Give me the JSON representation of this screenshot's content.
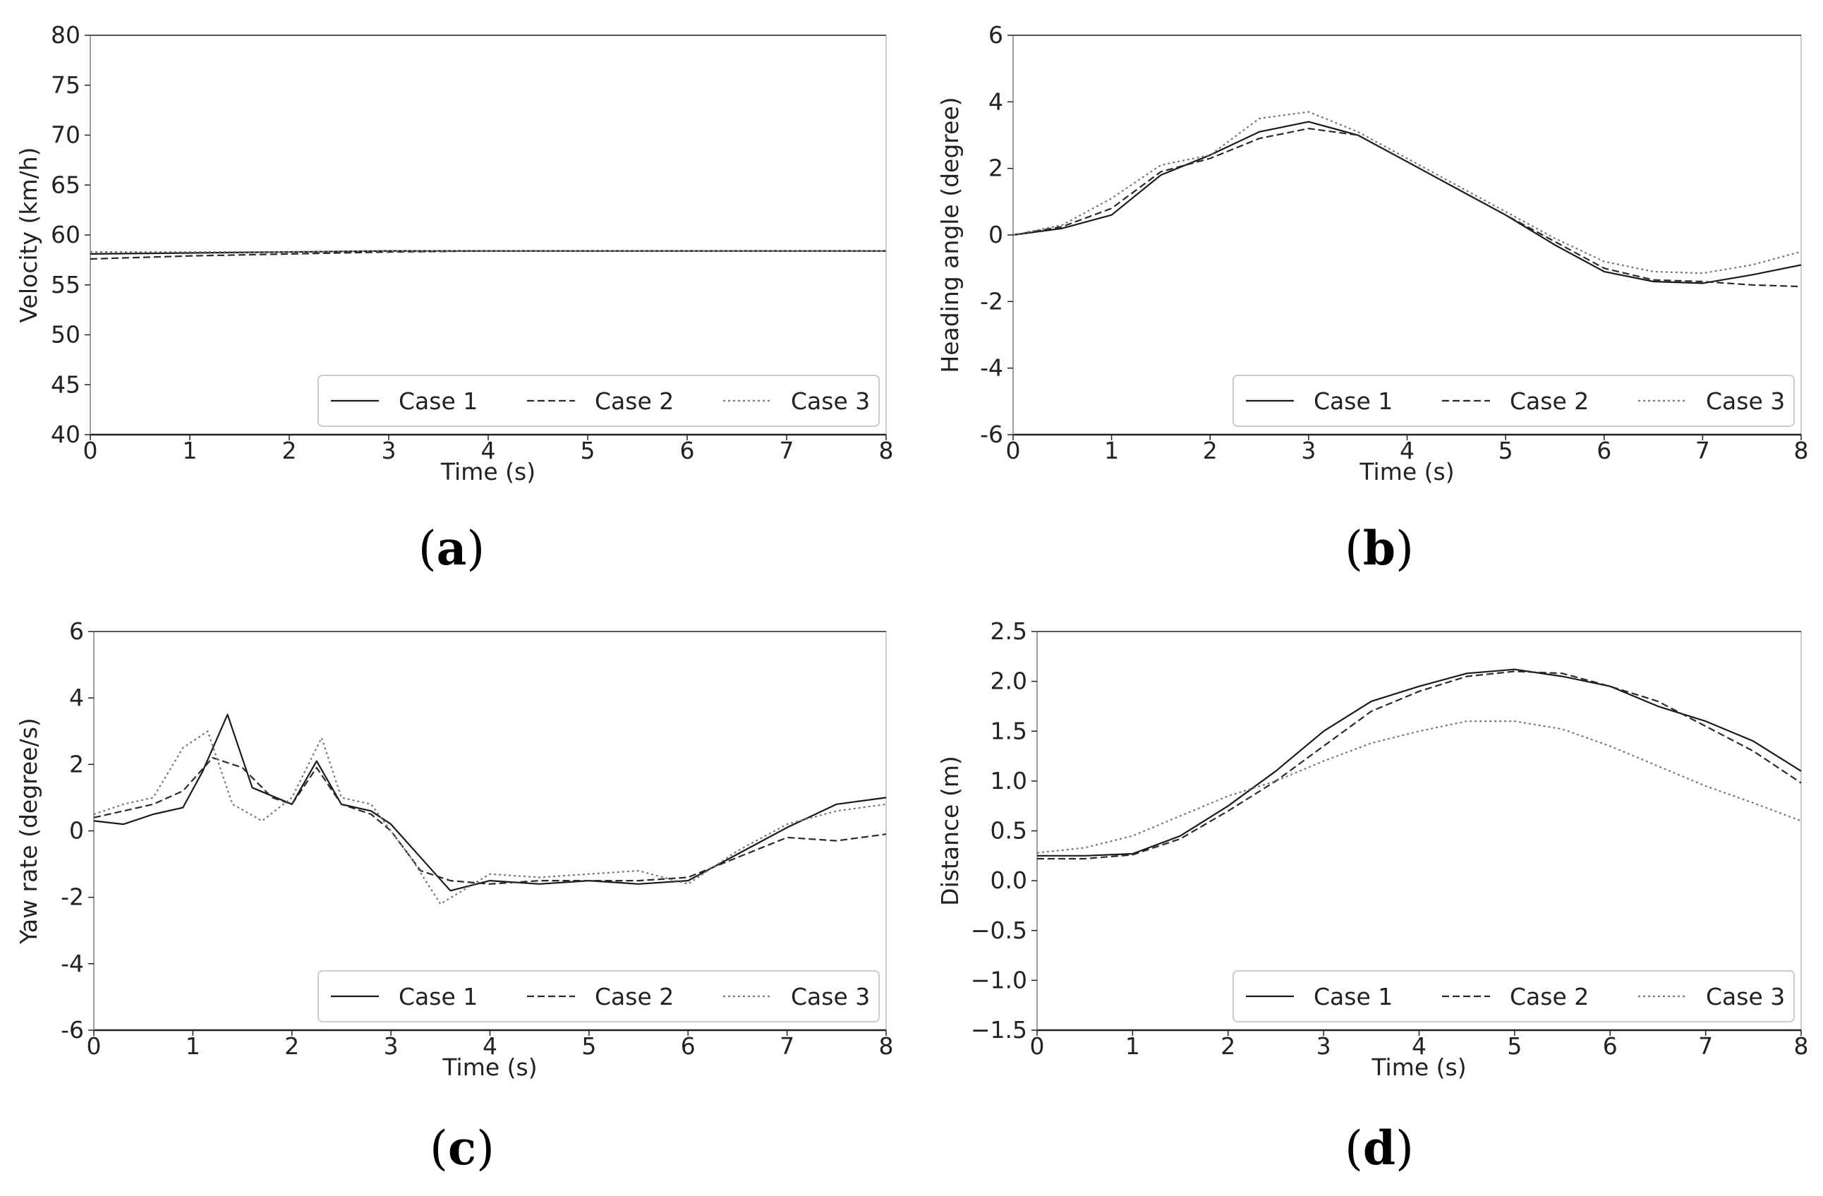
{
  "chart_data": [
    {
      "type": "line",
      "panel": "(a)",
      "panel_letter": "a",
      "xlabel": "Time (s)",
      "ylabel": "Velocity (km/h)",
      "xlim": [
        0,
        8
      ],
      "ylim": [
        40,
        80
      ],
      "xticks": [
        0,
        1,
        2,
        3,
        4,
        5,
        6,
        7,
        8
      ],
      "yticks": [
        40,
        45,
        50,
        55,
        60,
        65,
        70,
        75,
        80
      ],
      "legend": "lower-right",
      "series": [
        {
          "name": "Case 1",
          "style": "solid",
          "x": [
            0,
            1,
            2,
            3,
            4,
            5,
            6,
            7,
            8
          ],
          "y": [
            58.1,
            58.2,
            58.3,
            58.4,
            58.4,
            58.4,
            58.4,
            58.4,
            58.4
          ]
        },
        {
          "name": "Case 2",
          "style": "dashed",
          "x": [
            0,
            1,
            2,
            3,
            4,
            5,
            6,
            7,
            8
          ],
          "y": [
            57.6,
            57.9,
            58.1,
            58.3,
            58.4,
            58.4,
            58.4,
            58.4,
            58.4
          ]
        },
        {
          "name": "Case 3",
          "style": "dotted",
          "x": [
            0,
            1,
            2,
            3,
            4,
            5,
            6,
            7,
            8
          ],
          "y": [
            58.3,
            58.3,
            58.3,
            58.4,
            58.4,
            58.4,
            58.4,
            58.4,
            58.4
          ]
        }
      ]
    },
    {
      "type": "line",
      "panel": "(b)",
      "panel_letter": "b",
      "xlabel": "Time (s)",
      "ylabel": "Heading angle (degree)",
      "xlim": [
        0,
        8
      ],
      "ylim": [
        -6,
        6
      ],
      "xticks": [
        0,
        1,
        2,
        3,
        4,
        5,
        6,
        7,
        8
      ],
      "yticks": [
        -6,
        -4,
        -2,
        0,
        2,
        4,
        6
      ],
      "legend": "lower-right",
      "series": [
        {
          "name": "Case 1",
          "style": "solid",
          "x": [
            0,
            0.5,
            1,
            1.5,
            2,
            2.5,
            3,
            3.5,
            4,
            4.5,
            5,
            5.5,
            6,
            6.5,
            7,
            7.5,
            8
          ],
          "y": [
            0,
            0.2,
            0.6,
            1.8,
            2.4,
            3.1,
            3.4,
            3.0,
            2.2,
            1.4,
            0.6,
            -0.3,
            -1.1,
            -1.4,
            -1.45,
            -1.2,
            -0.9
          ]
        },
        {
          "name": "Case 2",
          "style": "dashed",
          "x": [
            0,
            0.5,
            1,
            1.5,
            2,
            2.5,
            3,
            3.5,
            4,
            4.5,
            5,
            5.5,
            6,
            6.5,
            7,
            7.5,
            8
          ],
          "y": [
            0,
            0.25,
            0.8,
            1.9,
            2.3,
            2.9,
            3.2,
            3.0,
            2.2,
            1.4,
            0.6,
            -0.2,
            -1.0,
            -1.35,
            -1.4,
            -1.5,
            -1.55
          ]
        },
        {
          "name": "Case 3",
          "style": "dotted",
          "x": [
            0,
            0.5,
            1,
            1.5,
            2,
            2.5,
            3,
            3.5,
            4,
            4.5,
            5,
            5.5,
            6,
            6.5,
            7,
            7.5,
            8
          ],
          "y": [
            0,
            0.3,
            1.1,
            2.1,
            2.4,
            3.5,
            3.7,
            3.1,
            2.3,
            1.5,
            0.7,
            -0.1,
            -0.8,
            -1.1,
            -1.15,
            -0.9,
            -0.5
          ]
        }
      ]
    },
    {
      "type": "line",
      "panel": "(c)",
      "panel_letter": "c",
      "xlabel": "Time (s)",
      "ylabel": "Yaw rate (degree/s)",
      "xlim": [
        0,
        8
      ],
      "ylim": [
        -6,
        6
      ],
      "xticks": [
        0,
        1,
        2,
        3,
        4,
        5,
        6,
        7,
        8
      ],
      "yticks": [
        -6,
        -4,
        -2,
        0,
        2,
        4,
        6
      ],
      "legend": "lower-right",
      "series": [
        {
          "name": "Case 1",
          "style": "solid",
          "x": [
            0,
            0.3,
            0.6,
            0.9,
            1.1,
            1.35,
            1.6,
            2.0,
            2.25,
            2.5,
            2.8,
            3.0,
            3.3,
            3.6,
            4.0,
            4.5,
            5.0,
            5.5,
            6.0,
            6.5,
            7.0,
            7.5,
            8.0
          ],
          "y": [
            0.3,
            0.2,
            0.5,
            0.7,
            1.8,
            3.5,
            1.3,
            0.8,
            2.1,
            0.8,
            0.6,
            0.2,
            -0.8,
            -1.8,
            -1.5,
            -1.6,
            -1.5,
            -1.6,
            -1.5,
            -0.7,
            0.1,
            0.8,
            1.0
          ]
        },
        {
          "name": "Case 2",
          "style": "dashed",
          "x": [
            0,
            0.3,
            0.6,
            0.9,
            1.2,
            1.5,
            1.8,
            2.0,
            2.25,
            2.5,
            2.8,
            3.0,
            3.3,
            3.6,
            4.0,
            4.5,
            5.0,
            5.5,
            6.0,
            6.5,
            7.0,
            7.5,
            8.0
          ],
          "y": [
            0.4,
            0.6,
            0.8,
            1.2,
            2.2,
            1.9,
            1.0,
            0.8,
            1.9,
            0.8,
            0.5,
            0.0,
            -1.2,
            -1.5,
            -1.6,
            -1.5,
            -1.5,
            -1.5,
            -1.4,
            -0.8,
            -0.2,
            -0.3,
            -0.1
          ]
        },
        {
          "name": "Case 3",
          "style": "dotted",
          "x": [
            0,
            0.3,
            0.6,
            0.9,
            1.15,
            1.4,
            1.7,
            2.0,
            2.3,
            2.5,
            2.8,
            3.0,
            3.2,
            3.5,
            4.0,
            4.5,
            5.0,
            5.5,
            6.0,
            6.5,
            7.0,
            7.5,
            8.0
          ],
          "y": [
            0.5,
            0.8,
            1.0,
            2.5,
            3.0,
            0.8,
            0.3,
            1.0,
            2.8,
            1.0,
            0.8,
            0.0,
            -0.8,
            -2.2,
            -1.3,
            -1.4,
            -1.3,
            -1.2,
            -1.6,
            -0.6,
            0.2,
            0.6,
            0.8
          ]
        }
      ]
    },
    {
      "type": "line",
      "panel": "(d)",
      "panel_letter": "d",
      "xlabel": "Time (s)",
      "ylabel": "Distance (m)",
      "xlim": [
        0,
        8
      ],
      "ylim": [
        -1.5,
        2.5
      ],
      "xticks": [
        0,
        1,
        2,
        3,
        4,
        5,
        6,
        7,
        8
      ],
      "yticks": [
        -1.5,
        -1.0,
        -0.5,
        0.0,
        0.5,
        1.0,
        1.5,
        2.0,
        2.5
      ],
      "ytick_labels": [
        "−1.5",
        "−1.0",
        "−0.5",
        "0.0",
        "0.5",
        "1.0",
        "1.5",
        "2.0",
        "2.5"
      ],
      "legend": "lower-right",
      "series": [
        {
          "name": "Case 1",
          "style": "solid",
          "x": [
            0,
            0.5,
            1,
            1.5,
            2,
            2.5,
            3,
            3.5,
            4,
            4.5,
            5,
            5.5,
            6,
            6.5,
            7,
            7.5,
            8
          ],
          "y": [
            0.25,
            0.25,
            0.27,
            0.45,
            0.75,
            1.1,
            1.5,
            1.8,
            1.95,
            2.08,
            2.12,
            2.05,
            1.95,
            1.75,
            1.6,
            1.4,
            1.1
          ]
        },
        {
          "name": "Case 2",
          "style": "dashed",
          "x": [
            0,
            0.5,
            1,
            1.5,
            2,
            2.5,
            3,
            3.5,
            4,
            4.5,
            5,
            5.5,
            6,
            6.5,
            7,
            7.5,
            8
          ],
          "y": [
            0.22,
            0.22,
            0.26,
            0.42,
            0.7,
            1.0,
            1.35,
            1.7,
            1.9,
            2.05,
            2.1,
            2.08,
            1.95,
            1.8,
            1.55,
            1.3,
            0.98
          ]
        },
        {
          "name": "Case 3",
          "style": "dotted",
          "x": [
            0,
            0.5,
            1,
            1.5,
            2,
            2.5,
            3,
            3.5,
            4,
            4.5,
            5,
            5.5,
            6,
            6.5,
            7,
            7.5,
            8
          ],
          "y": [
            0.28,
            0.33,
            0.45,
            0.65,
            0.85,
            1.0,
            1.2,
            1.38,
            1.5,
            1.6,
            1.6,
            1.52,
            1.35,
            1.15,
            0.95,
            0.78,
            0.6
          ]
        }
      ]
    }
  ]
}
